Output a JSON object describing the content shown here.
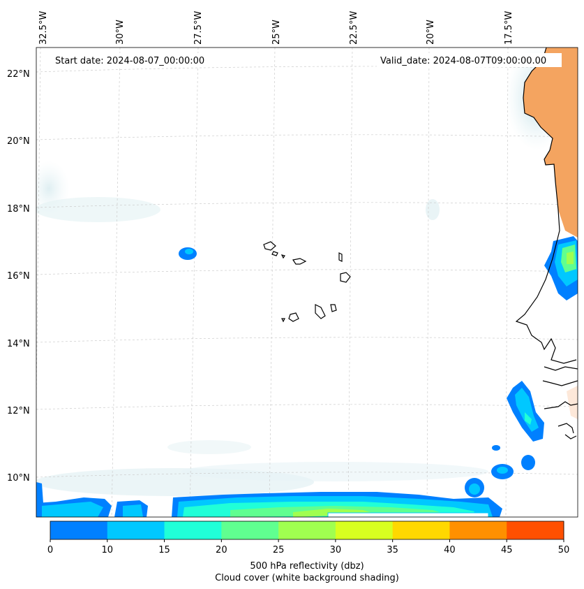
{
  "map": {
    "start_date_text": "Start date: 2024-08-07_00:00:00",
    "valid_date_text": "Valid_date: 2024-08-07T09:00:00.00",
    "lon_labels": [
      "32.5°W",
      "30°W",
      "27.5°W",
      "25°W",
      "22.5°W",
      "20°W",
      "17.5°W"
    ],
    "lat_labels": [
      "22°N",
      "20°N",
      "18°N",
      "16°N",
      "14°N",
      "12°N",
      "10°N"
    ],
    "land_color": "#f4a460",
    "coastline_color": "#000000"
  },
  "colorbar": {
    "title_line1": "500 hPa reflectivity (dbz)",
    "title_line2": "Cloud cover (white background shading)",
    "ticks": [
      "0",
      "10",
      "15",
      "20",
      "25",
      "30",
      "35",
      "40",
      "45",
      "50"
    ],
    "colors": [
      "#0080ff",
      "#00c8ff",
      "#20ffd8",
      "#60ff90",
      "#a0ff50",
      "#d8ff20",
      "#ffd800",
      "#ff9000",
      "#ff5000"
    ]
  }
}
